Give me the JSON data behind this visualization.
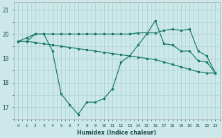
{
  "xlabel": "Humidex (Indice chaleur)",
  "background_color": "#cce8e8",
  "grid_color": "#aad0d0",
  "line_color": "#1a7a6e",
  "xlim": [
    -0.5,
    23.5
  ],
  "ylim": [
    16.5,
    21.3
  ],
  "x": [
    0,
    1,
    2,
    3,
    4,
    5,
    6,
    7,
    8,
    9,
    10,
    11,
    12,
    13,
    14,
    15,
    16,
    17,
    18,
    19,
    20,
    21,
    22,
    23
  ],
  "y_main": [
    19.7,
    19.85,
    20.0,
    20.0,
    19.3,
    17.55,
    17.1,
    16.7,
    17.2,
    17.2,
    17.35,
    17.75,
    18.85,
    19.1,
    19.55,
    20.0,
    20.55,
    19.6,
    19.55,
    19.3,
    19.3,
    18.9,
    18.85,
    18.4
  ],
  "y_upper": [
    19.7,
    19.7,
    20.0,
    20.0,
    20.0,
    20.0,
    20.0,
    20.0,
    20.0,
    20.0,
    20.0,
    20.0,
    20.0,
    20.0,
    20.05,
    20.05,
    20.05,
    20.15,
    20.2,
    20.15,
    20.2,
    19.3,
    19.1,
    18.4
  ],
  "y_lower": [
    19.7,
    19.7,
    19.65,
    19.6,
    19.55,
    19.5,
    19.45,
    19.4,
    19.35,
    19.3,
    19.25,
    19.2,
    19.15,
    19.1,
    19.05,
    19.0,
    18.95,
    18.85,
    18.75,
    18.65,
    18.55,
    18.45,
    18.4,
    18.4
  ],
  "yticks": [
    17,
    18,
    19,
    20,
    21
  ]
}
